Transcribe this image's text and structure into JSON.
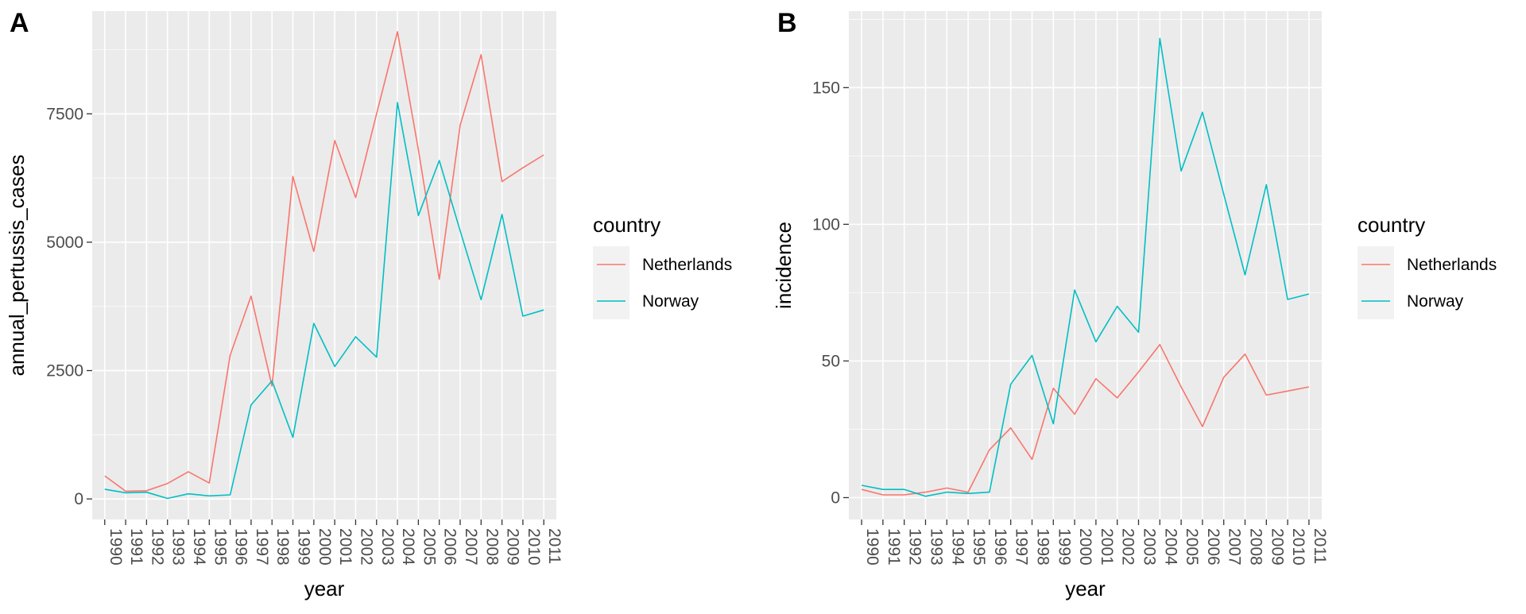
{
  "chart_data": [
    {
      "type": "line",
      "panel": "A",
      "xlabel": "year",
      "ylabel": "annual_pertussis_cases",
      "x": [
        "1990",
        "1991",
        "1992",
        "1993",
        "1994",
        "1995",
        "1996",
        "1997",
        "1998",
        "1999",
        "2000",
        "2001",
        "2002",
        "2003",
        "2004",
        "2005",
        "2006",
        "2007",
        "2008",
        "2009",
        "2010",
        "2011"
      ],
      "ylim": [
        -400,
        9500
      ],
      "yticks": [
        0,
        2500,
        5000,
        7500
      ],
      "ytick_labels": [
        "0",
        "2500",
        "5000",
        "7500"
      ],
      "grid": true,
      "legend": {
        "title": "country",
        "position": "right"
      },
      "series": [
        {
          "name": "Netherlands",
          "color": "#F8766D",
          "values": [
            450,
            150,
            160,
            300,
            530,
            310,
            2800,
            3950,
            2200,
            6280,
            4820,
            6980,
            5870,
            7500,
            9100,
            6800,
            4280,
            7280,
            8650,
            6180,
            6450,
            6700
          ]
        },
        {
          "name": "Norway",
          "color": "#00BFC4",
          "values": [
            190,
            120,
            130,
            10,
            100,
            60,
            80,
            1830,
            2300,
            1200,
            3420,
            2580,
            3160,
            2760,
            7720,
            5520,
            6590,
            5220,
            3880,
            5540,
            3560,
            3680
          ]
        }
      ]
    },
    {
      "type": "line",
      "panel": "B",
      "xlabel": "year",
      "ylabel": "incidence",
      "x": [
        "1990",
        "1991",
        "1992",
        "1993",
        "1994",
        "1995",
        "1996",
        "1997",
        "1998",
        "1999",
        "2000",
        "2001",
        "2002",
        "2003",
        "2004",
        "2005",
        "2006",
        "2007",
        "2008",
        "2009",
        "2010",
        "2011"
      ],
      "ylim": [
        -8,
        178
      ],
      "yticks": [
        0,
        50,
        100,
        150
      ],
      "ytick_labels": [
        "0",
        "50",
        "100",
        "150"
      ],
      "grid": true,
      "legend": {
        "title": "country",
        "position": "right"
      },
      "series": [
        {
          "name": "Netherlands",
          "color": "#F8766D",
          "values": [
            3,
            1,
            1,
            2,
            3.5,
            2,
            17.5,
            25.5,
            14,
            40,
            30.5,
            43.5,
            36.5,
            46,
            56,
            40.5,
            26,
            44,
            52.5,
            37.5,
            39,
            40.5
          ]
        },
        {
          "name": "Norway",
          "color": "#00BFC4",
          "values": [
            4.5,
            3,
            3,
            0.5,
            2,
            1.5,
            2,
            41.5,
            52,
            27,
            76,
            57,
            70,
            60.5,
            168,
            119.5,
            141,
            111,
            81.5,
            114.5,
            72.5,
            74.5
          ]
        }
      ]
    }
  ]
}
